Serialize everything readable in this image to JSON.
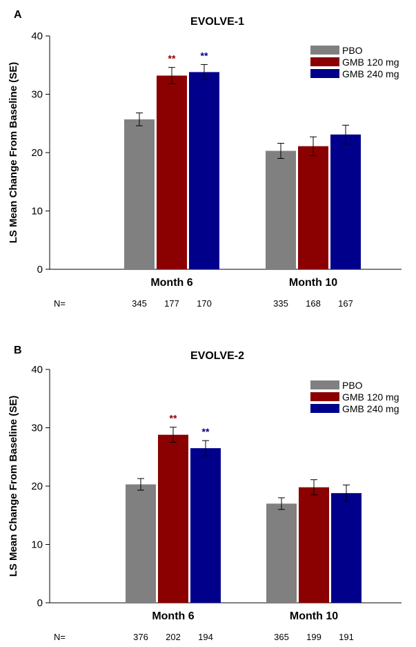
{
  "chart_data": [
    {
      "panel_label": "A",
      "title": "EVOLVE-1",
      "type": "bar",
      "ylabel": "LS Mean Change From Baseline (SE)",
      "ylim": [
        0,
        40
      ],
      "yticks": [
        0,
        10,
        20,
        30,
        40
      ],
      "categories": [
        "Month 6",
        "Month 10"
      ],
      "n_label": "N=",
      "n_values": [
        [
          "345",
          "177",
          "170"
        ],
        [
          "335",
          "168",
          "167"
        ]
      ],
      "legend_position": "top-right",
      "series": [
        {
          "name": "PBO",
          "color": "#808080",
          "values": [
            25.7,
            20.3
          ],
          "se": [
            1.1,
            1.3
          ],
          "marks": [
            "",
            ""
          ],
          "mark_color": "#808080"
        },
        {
          "name": "GMB 120 mg",
          "color": "#8B0000",
          "values": [
            33.2,
            21.1
          ],
          "se": [
            1.4,
            1.6
          ],
          "marks": [
            "**",
            ""
          ],
          "mark_color": "#8B0000"
        },
        {
          "name": "GMB 240 mg",
          "color": "#00008B",
          "values": [
            33.8,
            23.1
          ],
          "se": [
            1.3,
            1.6
          ],
          "marks": [
            "**",
            ""
          ],
          "mark_color": "#00008B"
        }
      ]
    },
    {
      "panel_label": "B",
      "title": "EVOLVE-2",
      "type": "bar",
      "ylabel": "LS Mean Change From Baseline (SE)",
      "ylim": [
        0,
        40
      ],
      "yticks": [
        0,
        10,
        20,
        30,
        40
      ],
      "categories": [
        "Month 6",
        "Month 10"
      ],
      "n_label": "N=",
      "n_values": [
        [
          "376",
          "202",
          "194"
        ],
        [
          "365",
          "199",
          "191"
        ]
      ],
      "legend_position": "top-right",
      "series": [
        {
          "name": "PBO",
          "color": "#808080",
          "values": [
            20.3,
            17.0
          ],
          "se": [
            1.0,
            1.0
          ],
          "marks": [
            "",
            ""
          ],
          "mark_color": "#808080"
        },
        {
          "name": "GMB 120 mg",
          "color": "#8B0000",
          "values": [
            28.8,
            19.8
          ],
          "se": [
            1.3,
            1.3
          ],
          "marks": [
            "**",
            ""
          ],
          "mark_color": "#8B0000"
        },
        {
          "name": "GMB 240 mg",
          "color": "#00008B",
          "values": [
            26.5,
            18.8
          ],
          "se": [
            1.3,
            1.4
          ],
          "marks": [
            "**",
            ""
          ],
          "mark_color": "#00008B"
        }
      ]
    }
  ]
}
